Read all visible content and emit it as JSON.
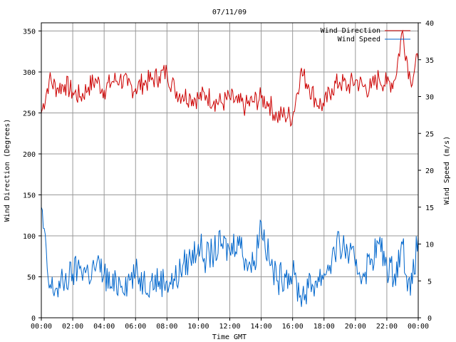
{
  "chart_data": {
    "type": "line",
    "title": "07/11/09",
    "xlabel": "Time GMT",
    "ylabel_left": "Wind Direction (Degrees)",
    "ylabel_right": "Wind Speed (m/s)",
    "x_ticks": [
      "00:00",
      "02:00",
      "04:00",
      "06:00",
      "08:00",
      "10:00",
      "12:00",
      "14:00",
      "16:00",
      "18:00",
      "20:00",
      "22:00",
      "00:00"
    ],
    "x_range_hours": [
      0,
      24
    ],
    "y_left_ticks": [
      0,
      50,
      100,
      150,
      200,
      250,
      300,
      350
    ],
    "y_left_range": [
      0,
      360
    ],
    "y_right_ticks": [
      0,
      5,
      10,
      15,
      20,
      25,
      30,
      35,
      40
    ],
    "y_right_range": [
      0,
      40
    ],
    "grid": true,
    "legend_position": "top-right",
    "series": [
      {
        "name": "Wind Direction",
        "axis": "left",
        "color": "#cc0000",
        "hours": [
          0,
          0.5,
          1,
          1.5,
          2,
          2.5,
          3,
          3.5,
          4,
          4.5,
          5,
          5.5,
          6,
          6.5,
          7,
          7.5,
          8,
          8.5,
          9,
          9.5,
          10,
          10.5,
          11,
          11.5,
          12,
          12.5,
          13,
          13.5,
          14,
          14.5,
          15,
          15.5,
          16,
          16.5,
          17,
          17.5,
          18,
          18.5,
          19,
          19.5,
          20,
          20.5,
          21,
          21.5,
          22,
          22.5,
          23,
          23.5,
          24
        ],
        "values": [
          250,
          290,
          280,
          285,
          275,
          270,
          282,
          290,
          278,
          288,
          292,
          283,
          280,
          287,
          290,
          295,
          300,
          278,
          272,
          270,
          268,
          272,
          265,
          262,
          268,
          262,
          258,
          264,
          268,
          262,
          245,
          248,
          245,
          300,
          285,
          265,
          258,
          280,
          288,
          282,
          290,
          282,
          280,
          293,
          285,
          290,
          350,
          290,
          315
        ]
      },
      {
        "name": "Wind Speed",
        "axis": "right",
        "color": "#0066cc",
        "hours": [
          0,
          0.5,
          1,
          1.5,
          2,
          2.5,
          3,
          3.5,
          4,
          4.5,
          5,
          5.5,
          6,
          6.5,
          7,
          7.5,
          8,
          8.5,
          9,
          9.5,
          10,
          10.5,
          11,
          11.5,
          12,
          12.5,
          13,
          13.5,
          14,
          14.5,
          15,
          15.5,
          16,
          16.5,
          17,
          17.5,
          18,
          18.5,
          19,
          19.5,
          20,
          20.5,
          21,
          21.5,
          22,
          22.5,
          23,
          23.5,
          24
        ],
        "values": [
          15,
          4,
          4,
          5,
          6,
          7,
          6,
          7,
          6,
          4,
          5,
          5,
          6,
          5,
          5,
          5,
          5,
          5,
          7,
          8,
          10,
          8,
          9,
          10,
          9,
          11,
          8,
          7,
          13,
          8,
          5,
          6,
          6,
          3,
          4,
          5,
          6,
          8,
          10,
          9,
          7,
          6,
          8,
          10,
          7,
          6,
          10,
          3,
          11
        ]
      }
    ]
  }
}
